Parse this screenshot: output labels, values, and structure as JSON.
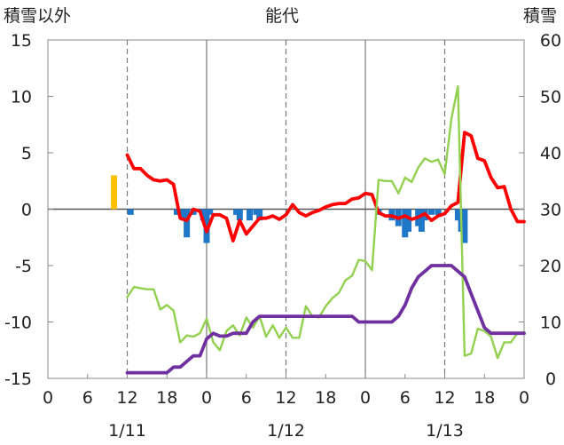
{
  "chart_data": {
    "type": "bar+line",
    "title": "能代",
    "left_axis_label": "積雪以外",
    "right_axis_label": "積雪",
    "left_ylim": [
      -15,
      15
    ],
    "left_ticks": [
      15,
      10,
      5,
      0,
      -5,
      -10,
      -15
    ],
    "right_ylim": [
      0,
      60
    ],
    "right_ticks": [
      60,
      50,
      40,
      30,
      20,
      10,
      0
    ],
    "x_range_hours": [
      0,
      72
    ],
    "x_tick_labels": [
      "0",
      "6",
      "12",
      "18",
      "0",
      "6",
      "12",
      "18",
      "0",
      "6",
      "12",
      "18",
      "0"
    ],
    "date_labels": [
      "1/11",
      "1/12",
      "1/13"
    ],
    "grid": "vertical dashed at 12h, solid at 0h",
    "series": [
      {
        "color": "#ffc000",
        "kind": "bar",
        "axis": "left",
        "x": [
          10
        ],
        "values": [
          3.0
        ]
      },
      {
        "color": "#1f77c8",
        "kind": "bar",
        "axis": "left",
        "x": [
          12.5,
          19.5,
          20.5,
          21,
          22,
          23.5,
          24,
          24.5,
          28.5,
          29,
          30.5,
          31.5,
          32,
          50,
          52,
          53,
          54,
          54.5,
          56,
          56.5,
          57,
          58,
          59,
          62,
          62.5,
          63
        ],
        "values": [
          -0.5,
          -0.5,
          -1.0,
          -2.5,
          -0.5,
          -1.0,
          -3.0,
          -0.5,
          -0.5,
          -1.0,
          -1.0,
          -0.5,
          -1.0,
          -0.5,
          -1.0,
          -1.5,
          -2.5,
          -2.0,
          -1.5,
          -2.0,
          -1.0,
          -0.5,
          -0.5,
          -1.0,
          -2.0,
          -3.0
        ]
      },
      {
        "color": "#ff0000",
        "kind": "line",
        "axis": "left",
        "x": [
          12,
          13,
          14,
          15,
          16,
          17,
          18,
          19,
          20,
          21,
          22,
          23,
          24,
          25,
          26,
          27,
          28,
          29,
          30,
          31,
          32,
          33,
          34,
          35,
          36,
          37,
          38,
          39,
          40,
          41,
          42,
          43,
          44,
          45,
          46,
          47,
          48,
          49,
          50,
          51,
          52,
          53,
          54,
          55,
          56,
          57,
          58,
          59,
          60,
          61,
          62,
          63,
          64,
          65,
          66,
          67,
          68,
          69,
          70,
          71,
          72
        ],
        "values": [
          4.8,
          3.6,
          3.6,
          3.0,
          2.6,
          2.5,
          2.6,
          2.2,
          -0.8,
          -1.0,
          0.0,
          -0.2,
          -2.0,
          -0.5,
          -0.5,
          -0.8,
          -2.8,
          -1.0,
          -2.2,
          -1.5,
          -0.8,
          -0.8,
          -0.6,
          -0.9,
          -0.5,
          0.4,
          -0.3,
          -0.6,
          -0.3,
          -0.1,
          0.2,
          0.4,
          0.5,
          0.5,
          0.9,
          1.0,
          1.4,
          1.3,
          -0.3,
          -0.6,
          -0.6,
          -0.8,
          -0.6,
          -0.9,
          -0.7,
          -0.4,
          -1.0,
          -0.6,
          -0.4,
          0.3,
          0.6,
          6.8,
          6.5,
          4.5,
          4.3,
          2.8,
          1.9,
          2.0,
          0.0,
          -1.1,
          -1.1
        ]
      },
      {
        "color": "#92d050",
        "kind": "line",
        "axis": "left",
        "x": [
          12,
          13,
          14,
          15,
          16,
          17,
          18,
          19,
          20,
          21,
          22,
          23,
          24,
          25,
          26,
          27,
          28,
          29,
          30,
          31,
          32,
          33,
          34,
          35,
          36,
          37,
          38,
          39,
          40,
          41,
          42,
          43,
          44,
          45,
          46,
          47,
          48,
          49,
          50,
          51,
          52,
          53,
          54,
          55,
          56,
          57,
          58,
          59,
          60,
          61,
          62,
          63,
          64,
          65,
          66,
          67,
          68,
          69,
          70,
          71,
          72
        ],
        "values": [
          -7.8,
          -6.9,
          -7.0,
          -7.1,
          -7.1,
          -8.9,
          -8.5,
          -9.0,
          -11.8,
          -11.2,
          -11.3,
          -11.0,
          -9.7,
          -11.8,
          -12.5,
          -10.8,
          -10.3,
          -11.2,
          -9.6,
          -10.5,
          -9.5,
          -11.3,
          -10.3,
          -11.4,
          -10.5,
          -11.4,
          -11.4,
          -8.6,
          -9.5,
          -9.6,
          -8.6,
          -7.9,
          -7.4,
          -6.3,
          -5.9,
          -4.5,
          -4.6,
          -5.4,
          2.6,
          2.5,
          2.5,
          1.4,
          2.8,
          2.4,
          3.7,
          4.5,
          4.2,
          4.4,
          3.1,
          8.0,
          10.9,
          -13.0,
          -12.8,
          -10.6,
          -10.8,
          -11.3,
          -13.2,
          -11.8,
          -11.8,
          -11.0,
          -10.9
        ]
      },
      {
        "color": "#7030a0",
        "kind": "line",
        "axis": "right",
        "x": [
          12,
          13,
          14,
          15,
          16,
          17,
          18,
          19,
          20,
          21,
          22,
          23,
          24,
          25,
          26,
          27,
          28,
          29,
          30,
          31,
          32,
          33,
          34,
          35,
          36,
          37,
          38,
          39,
          40,
          41,
          42,
          43,
          44,
          45,
          46,
          47,
          48,
          49,
          50,
          51,
          52,
          53,
          54,
          55,
          56,
          57,
          58,
          59,
          60,
          61,
          62,
          63,
          64,
          65,
          66,
          67,
          68,
          69,
          70,
          71,
          72
        ],
        "values": [
          1,
          1,
          1,
          1,
          1,
          1,
          1,
          2,
          2,
          3,
          4,
          4,
          7,
          8,
          7.5,
          7.5,
          8,
          8,
          8,
          10,
          11,
          11,
          11,
          11,
          11,
          11,
          11,
          11,
          11,
          11,
          11,
          11,
          11,
          11,
          11,
          10,
          10,
          10,
          10,
          10,
          10,
          11,
          13,
          16,
          18,
          19,
          20,
          20,
          20,
          20,
          19,
          18,
          15,
          12,
          9,
          8,
          8,
          8,
          8,
          8,
          8
        ]
      }
    ]
  }
}
